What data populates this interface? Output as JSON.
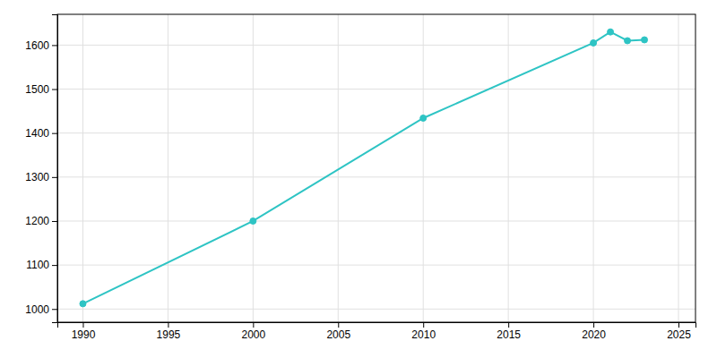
{
  "chart_data": {
    "type": "line",
    "x": [
      1990,
      2000,
      2010,
      2020,
      2021,
      2022,
      2023
    ],
    "values": [
      1012,
      1200,
      1434,
      1605,
      1630,
      1610,
      1612
    ],
    "color": "#2EC4C4",
    "marker": "circle",
    "xlim": [
      1988.5,
      2026
    ],
    "ylim": [
      970,
      1670
    ],
    "xticks": [
      1990,
      1995,
      2000,
      2005,
      2010,
      2015,
      2020,
      2025
    ],
    "yticks": [
      1000,
      1100,
      1200,
      1300,
      1400,
      1500,
      1600
    ],
    "grid": true
  }
}
